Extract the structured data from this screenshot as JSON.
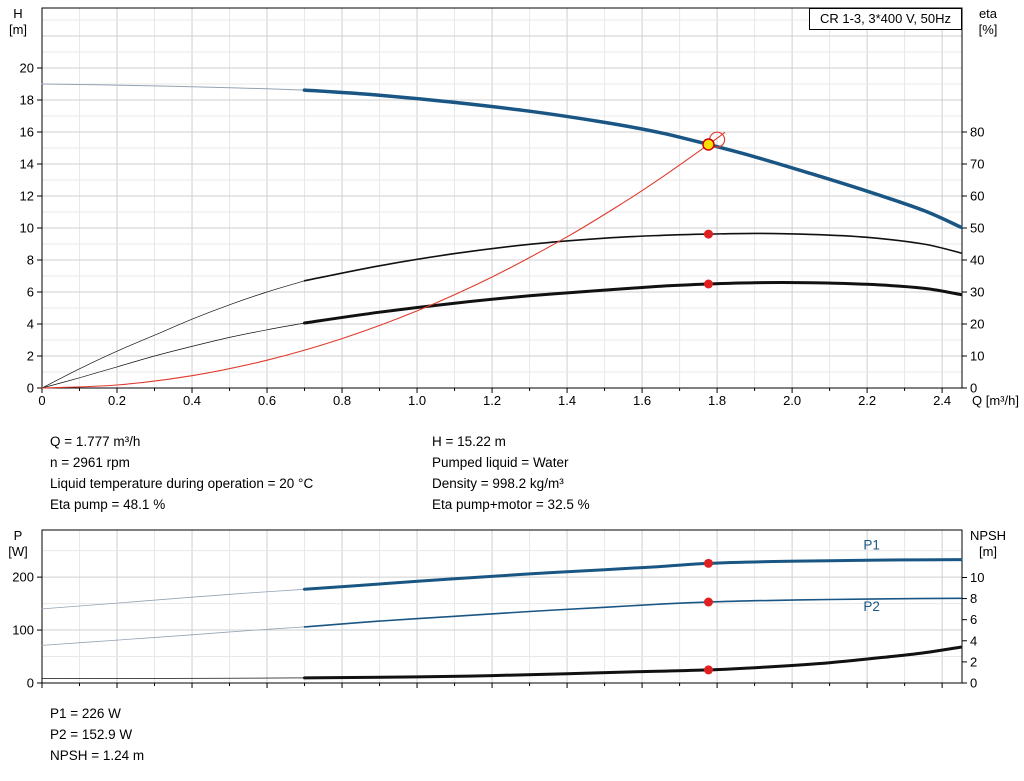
{
  "title_box": "CR 1-3, 3*400 V, 50Hz",
  "info_panel": {
    "left": [
      "Q = 1.777 m³/h",
      "n = 2961 rpm",
      "Liquid temperature during operation = 20 °C",
      "Eta pump = 48.1 %"
    ],
    "right": [
      "H = 15.22 m",
      "Pumped liquid = Water",
      "Density = 998.2 kg/m³",
      "Eta pump+motor = 32.5 %"
    ]
  },
  "results_panel": [
    "P1 = 226 W",
    "P2 = 152.9 W",
    "NPSH = 1.24 m"
  ],
  "colors": {
    "pump_curve": "#1a5684",
    "thin_curve": "#93a3b4",
    "black_curve": "#111111",
    "system_curve": "#e03a2f",
    "marker_red": "#e02020",
    "marker_yellow": "#ffdf00",
    "label_blue": "#1a5684",
    "grid_minor": "#e8e8e8",
    "grid_major": "#cfcfcf",
    "frame": "#000000"
  },
  "chart_data": [
    {
      "type": "line",
      "name": "hq-eta-chart",
      "title": "CR 1-3, 3*400 V, 50Hz",
      "x": {
        "label": "Q [m³/h]",
        "min": 0,
        "max": 2.453,
        "minor": 0.1,
        "major": 0.2,
        "show_labels": true
      },
      "y_left": {
        "label": [
          "H",
          "[m]"
        ],
        "min": 0,
        "max": 23.75,
        "minor": 1,
        "major": 2,
        "tick_max": 20
      },
      "y_right": {
        "label": [
          "eta",
          "[%]"
        ],
        "min": 0,
        "max": 118.75,
        "major": 10,
        "tick_max": 80
      },
      "series": [
        {
          "name": "pump-curve-extension",
          "axis": "left",
          "color": "thin_curve",
          "width": 1,
          "points": [
            [
              0,
              19.0
            ],
            [
              0.15,
              18.95
            ],
            [
              0.3,
              18.88
            ],
            [
              0.45,
              18.8
            ],
            [
              0.6,
              18.7
            ],
            [
              0.7,
              18.62
            ]
          ]
        },
        {
          "name": "pump-curve",
          "axis": "left",
          "color": "pump_curve",
          "width": 3.5,
          "points": [
            [
              0.7,
              18.62
            ],
            [
              0.9,
              18.3
            ],
            [
              1.1,
              17.85
            ],
            [
              1.3,
              17.3
            ],
            [
              1.5,
              16.6
            ],
            [
              1.65,
              15.95
            ],
            [
              1.777,
              15.22
            ],
            [
              1.9,
              14.45
            ],
            [
              2.05,
              13.4
            ],
            [
              2.2,
              12.3
            ],
            [
              2.35,
              11.1
            ],
            [
              2.45,
              10.05
            ]
          ]
        },
        {
          "name": "eta-pump-extension",
          "axis": "right",
          "color": "black_curve",
          "width": 0.7,
          "points": [
            [
              0,
              0
            ],
            [
              0.1,
              6
            ],
            [
              0.2,
              11.5
            ],
            [
              0.3,
              16.5
            ],
            [
              0.4,
              21.5
            ],
            [
              0.5,
              26
            ],
            [
              0.6,
              30
            ],
            [
              0.7,
              33.5
            ]
          ]
        },
        {
          "name": "eta-pump-curve",
          "axis": "right",
          "color": "black_curve",
          "width": 1.6,
          "points": [
            [
              0.7,
              33.5
            ],
            [
              0.9,
              38.2
            ],
            [
              1.1,
              42.0
            ],
            [
              1.3,
              44.9
            ],
            [
              1.5,
              46.8
            ],
            [
              1.65,
              47.7
            ],
            [
              1.777,
              48.1
            ],
            [
              1.9,
              48.3
            ],
            [
              2.05,
              48.0
            ],
            [
              2.2,
              47.1
            ],
            [
              2.35,
              45.0
            ],
            [
              2.45,
              42.2
            ]
          ]
        },
        {
          "name": "eta-pump-motor-extension",
          "axis": "right",
          "color": "black_curve",
          "width": 0.7,
          "points": [
            [
              0,
              0
            ],
            [
              0.1,
              3.2
            ],
            [
              0.2,
              6.6
            ],
            [
              0.3,
              10.0
            ],
            [
              0.4,
              13.0
            ],
            [
              0.5,
              15.8
            ],
            [
              0.6,
              18.2
            ],
            [
              0.7,
              20.3
            ]
          ]
        },
        {
          "name": "eta-pump-motor-curve",
          "axis": "right",
          "color": "black_curve",
          "width": 3,
          "points": [
            [
              0.7,
              20.3
            ],
            [
              0.9,
              23.7
            ],
            [
              1.1,
              26.5
            ],
            [
              1.3,
              28.8
            ],
            [
              1.5,
              30.6
            ],
            [
              1.65,
              31.8
            ],
            [
              1.777,
              32.5
            ],
            [
              1.9,
              32.9
            ],
            [
              2.05,
              32.9
            ],
            [
              2.2,
              32.4
            ],
            [
              2.35,
              31.2
            ],
            [
              2.45,
              29.2
            ]
          ]
        },
        {
          "name": "system-curve",
          "axis": "left",
          "color": "system_curve",
          "width": 1.1,
          "points": [
            [
              0,
              0
            ],
            [
              0.2,
              0.19
            ],
            [
              0.4,
              0.77
            ],
            [
              0.6,
              1.74
            ],
            [
              0.8,
              3.09
            ],
            [
              1.0,
              4.82
            ],
            [
              1.2,
              6.94
            ],
            [
              1.4,
              9.45
            ],
            [
              1.55,
              11.58
            ],
            [
              1.65,
              13.12
            ],
            [
              1.777,
              15.22
            ],
            [
              1.82,
              15.96
            ]
          ]
        }
      ],
      "markers": [
        {
          "name": "requested-duty-point-ring",
          "shape": "ring",
          "x": 1.8,
          "y": 15.52,
          "axis": "left",
          "r": 7.5,
          "color": "system_curve"
        },
        {
          "name": "duty-point",
          "shape": "dot",
          "x": 1.777,
          "y": 15.22,
          "axis": "left",
          "r": 5.5,
          "fill": "marker_yellow",
          "stroke": "#cc0000"
        },
        {
          "name": "eta-pump-point",
          "shape": "dot",
          "x": 1.777,
          "y": 48.1,
          "axis": "right",
          "r": 4.5,
          "fill": "marker_red"
        },
        {
          "name": "eta-pump-motor-point",
          "shape": "dot",
          "x": 1.777,
          "y": 32.5,
          "axis": "right",
          "r": 4.5,
          "fill": "marker_red"
        }
      ],
      "labels": []
    },
    {
      "type": "line",
      "name": "power-npsh-chart",
      "x": {
        "label": "",
        "min": 0,
        "max": 2.453,
        "minor": 0.1,
        "major": 0.2,
        "show_labels": false
      },
      "y_left": {
        "label": [
          "P",
          "[W]"
        ],
        "min": 0,
        "max": 289,
        "minor": 50,
        "major": 100,
        "tick_max": 200
      },
      "y_right": {
        "label": [
          "NPSH",
          "[m]"
        ],
        "min": 0,
        "max": 14.5,
        "major": 2,
        "tick_max": 10
      },
      "series": [
        {
          "name": "p1-extension",
          "axis": "left",
          "color": "thin_curve",
          "width": 0.8,
          "points": [
            [
              0,
              140
            ],
            [
              0.2,
              151
            ],
            [
              0.4,
              162
            ],
            [
              0.55,
              170
            ],
            [
              0.7,
              177
            ]
          ]
        },
        {
          "name": "p1-curve",
          "axis": "left",
          "color": "pump_curve",
          "width": 3,
          "points": [
            [
              0.7,
              177
            ],
            [
              0.9,
              187
            ],
            [
              1.1,
              197
            ],
            [
              1.3,
              206
            ],
            [
              1.5,
              214
            ],
            [
              1.65,
              220
            ],
            [
              1.777,
              226
            ],
            [
              1.95,
              229.5
            ],
            [
              2.1,
              231
            ],
            [
              2.3,
              232.5
            ],
            [
              2.45,
              233
            ]
          ]
        },
        {
          "name": "p2-extension",
          "axis": "left",
          "color": "thin_curve",
          "width": 0.8,
          "points": [
            [
              0,
              71
            ],
            [
              0.2,
              81
            ],
            [
              0.4,
              91
            ],
            [
              0.55,
              99
            ],
            [
              0.7,
              106
            ]
          ]
        },
        {
          "name": "p2-curve",
          "axis": "left",
          "color": "pump_curve",
          "width": 1.6,
          "points": [
            [
              0.7,
              106
            ],
            [
              0.9,
              117
            ],
            [
              1.1,
              126
            ],
            [
              1.3,
              135
            ],
            [
              1.5,
              143
            ],
            [
              1.65,
              149
            ],
            [
              1.777,
              152.9
            ],
            [
              1.95,
              156
            ],
            [
              2.1,
              157.8
            ],
            [
              2.3,
              159.3
            ],
            [
              2.45,
              160
            ]
          ]
        },
        {
          "name": "npsh-extension",
          "axis": "right",
          "color": "black_curve",
          "width": 0.7,
          "points": [
            [
              0,
              0.42
            ],
            [
              0.35,
              0.44
            ],
            [
              0.7,
              0.48
            ]
          ]
        },
        {
          "name": "npsh-curve",
          "axis": "right",
          "color": "black_curve",
          "width": 3,
          "points": [
            [
              0.7,
              0.48
            ],
            [
              1.0,
              0.58
            ],
            [
              1.2,
              0.7
            ],
            [
              1.4,
              0.88
            ],
            [
              1.6,
              1.08
            ],
            [
              1.777,
              1.24
            ],
            [
              1.95,
              1.55
            ],
            [
              2.1,
              1.92
            ],
            [
              2.25,
              2.45
            ],
            [
              2.35,
              2.85
            ],
            [
              2.45,
              3.4
            ]
          ]
        }
      ],
      "markers": [
        {
          "name": "p1-point",
          "shape": "dot",
          "x": 1.777,
          "y": 226,
          "axis": "left",
          "r": 4.5,
          "fill": "marker_red"
        },
        {
          "name": "p2-point",
          "shape": "dot",
          "x": 1.777,
          "y": 152.9,
          "axis": "left",
          "r": 4.5,
          "fill": "marker_red"
        },
        {
          "name": "npsh-point",
          "shape": "dot",
          "x": 1.777,
          "y": 1.24,
          "axis": "right",
          "r": 4.5,
          "fill": "marker_red"
        }
      ],
      "labels": [
        {
          "text": "P1",
          "x": 2.19,
          "y": 252,
          "axis": "left",
          "color": "label_blue"
        },
        {
          "text": "P2",
          "x": 2.19,
          "y": 136,
          "axis": "left",
          "color": "label_blue"
        }
      ]
    }
  ]
}
